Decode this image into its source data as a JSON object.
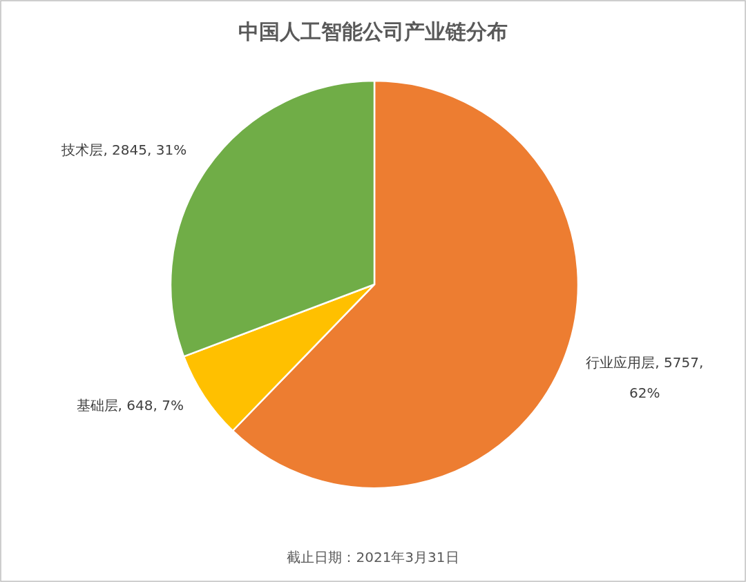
{
  "chart_data": {
    "type": "pie",
    "title": "中国人工智能公司产业链分布",
    "categories": [
      "行业应用层",
      "基础层",
      "技术层"
    ],
    "values": [
      5757,
      648,
      2845
    ],
    "colors": [
      "#ed7d31",
      "#ffc000",
      "#70ad47"
    ],
    "value_labels": [
      "5757, 62%",
      "648, 7%",
      "2845, 31%"
    ],
    "annotations": [
      "截止日期：2021年3月31日"
    ]
  }
}
